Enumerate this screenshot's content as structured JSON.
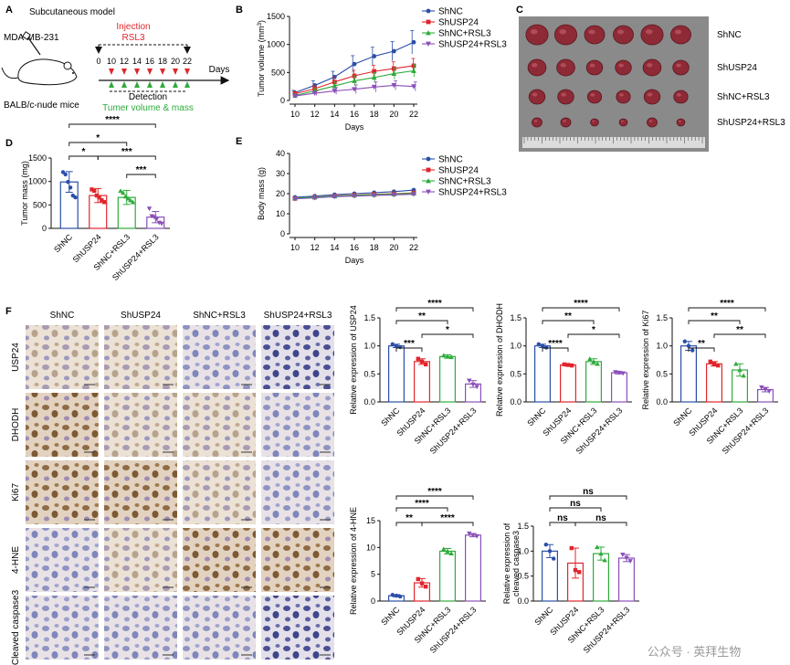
{
  "panel_a": {
    "letter": "A",
    "title": "Subcutaneous model",
    "cell_line": "MDA-MB-231",
    "mouse": "BALB/c-nude mice",
    "injection": "Injection",
    "drug": "RSL3",
    "days_label": "Days",
    "detection": "Detection",
    "detection_detail": "Tumer volume & mass",
    "ticks": [
      "0",
      "10",
      "12",
      "14",
      "16",
      "18",
      "20",
      "22"
    ]
  },
  "panel_b": {
    "letter": "B"
  },
  "panel_c": {
    "letter": "C",
    "rows": [
      "ShNC",
      "ShUSP24",
      "ShNC+RSL3",
      "ShUSP24+RSL3"
    ],
    "tumor_counts": [
      6,
      6,
      6,
      6
    ]
  },
  "panel_d": {
    "letter": "D"
  },
  "panel_e": {
    "letter": "E"
  },
  "panel_f": {
    "letter": "F",
    "columns": [
      "ShNC",
      "ShUSP24",
      "ShNC+RSL3",
      "ShUSP24+RSL3"
    ],
    "rows": [
      "USP24",
      "DHODH",
      "Ki67",
      "4-HNE",
      "Cleaved caspase3"
    ]
  },
  "colors": {
    "ShNC": "#2a4fa8",
    "ShUSP24": "#e0262b",
    "ShNC+RSL3": "#2eab3a",
    "ShUSP24+RSL3": "#8a4fb8"
  },
  "watermark": "公众号 · 英拜生物",
  "chart_data": [
    {
      "id": "tumor-volume",
      "type": "line",
      "x": [
        10,
        12,
        14,
        16,
        18,
        20,
        22
      ],
      "xlabel": "Days",
      "ylabel": "Tumor volume (mm",
      "ylabel_sup": "3",
      "ylabel_end": ")",
      "ylim": [
        0,
        1500
      ],
      "yticks": [
        0,
        500,
        1000,
        1500
      ],
      "legend": "top-right",
      "series": [
        {
          "name": "ShNC",
          "values": [
            140,
            270,
            420,
            650,
            790,
            880,
            1040
          ],
          "err": [
            40,
            80,
            100,
            150,
            160,
            170,
            210
          ]
        },
        {
          "name": "ShUSP24",
          "values": [
            120,
            210,
            330,
            440,
            520,
            570,
            620
          ],
          "err": [
            40,
            60,
            90,
            100,
            110,
            120,
            130
          ]
        },
        {
          "name": "ShNC+RSL3",
          "values": [
            90,
            170,
            260,
            350,
            410,
            480,
            530
          ],
          "err": [
            30,
            50,
            70,
            90,
            90,
            100,
            110
          ]
        },
        {
          "name": "ShUSP24+RSL3",
          "values": [
            80,
            130,
            170,
            200,
            240,
            270,
            250
          ],
          "err": [
            30,
            40,
            60,
            80,
            90,
            80,
            80
          ]
        }
      ]
    },
    {
      "id": "tumor-mass",
      "type": "bar",
      "categories": [
        "ShNC",
        "ShUSP24",
        "ShNC+RSL3",
        "ShUSP24+RSL3"
      ],
      "values": [
        990,
        700,
        660,
        240
      ],
      "err": [
        220,
        150,
        150,
        120
      ],
      "ylabel": "Tumor mass (mg)",
      "ylim": [
        0,
        1500
      ],
      "yticks": [
        0,
        500,
        1000,
        1500
      ],
      "points": [
        [
          1200,
          1150,
          990,
          870,
          700,
          660
        ],
        [
          830,
          800,
          700,
          660,
          600,
          560
        ],
        [
          800,
          760,
          680,
          640,
          600,
          560
        ],
        [
          420,
          260,
          240,
          200,
          120,
          100
        ]
      ],
      "sig": [
        {
          "a": 0,
          "b": 3,
          "label": "****"
        },
        {
          "a": 0,
          "b": 2,
          "label": "*"
        },
        {
          "a": 0,
          "b": 1,
          "label": "*"
        },
        {
          "a": 1,
          "b": 3,
          "label": "***"
        },
        {
          "a": 2,
          "b": 3,
          "label": "***"
        }
      ]
    },
    {
      "id": "body-mass",
      "type": "line",
      "x": [
        10,
        12,
        14,
        16,
        18,
        20,
        22
      ],
      "xlabel": "Days",
      "ylabel": "Body mass (g)",
      "ylim": [
        0,
        40
      ],
      "yticks": [
        0,
        10,
        20,
        30,
        40
      ],
      "legend": "top-right",
      "series": [
        {
          "name": "ShNC",
          "values": [
            18.2,
            18.8,
            19.5,
            20.0,
            20.5,
            21.0,
            21.8
          ]
        },
        {
          "name": "ShUSP24",
          "values": [
            17.6,
            18.2,
            18.9,
            19.3,
            19.7,
            20.0,
            20.4
          ]
        },
        {
          "name": "ShNC+RSL3",
          "values": [
            17.8,
            18.3,
            18.8,
            19.2,
            19.5,
            19.8,
            20.2
          ]
        },
        {
          "name": "ShUSP24+RSL3",
          "values": [
            17.4,
            17.9,
            18.5,
            18.8,
            19.1,
            19.4,
            19.7
          ]
        }
      ]
    },
    {
      "id": "usp24-expression",
      "type": "bar",
      "categories": [
        "ShNC",
        "ShUSP24",
        "ShNC+RSL3",
        "ShUSP24+RSL3"
      ],
      "values": [
        1.0,
        0.72,
        0.81,
        0.32
      ],
      "err": [
        0.03,
        0.05,
        0.03,
        0.06
      ],
      "ylabel": "Relative expression of USP24",
      "ylim": [
        0,
        1.5
      ],
      "yticks": [
        0.0,
        0.5,
        1.0,
        1.5
      ],
      "points": [
        [
          1.03,
          1.0,
          0.98
        ],
        [
          0.77,
          0.72,
          0.67
        ],
        [
          0.83,
          0.81,
          0.8
        ],
        [
          0.38,
          0.31,
          0.27
        ]
      ],
      "sig": [
        {
          "a": 0,
          "b": 3,
          "label": "****"
        },
        {
          "a": 0,
          "b": 2,
          "label": "**"
        },
        {
          "a": 1,
          "b": 3,
          "label": "*"
        },
        {
          "a": 0,
          "b": 1,
          "label": "***"
        }
      ]
    },
    {
      "id": "dhodh-expression",
      "type": "bar",
      "categories": [
        "ShNC",
        "ShUSP24",
        "ShNC+RSL3",
        "ShUSP24+RSL3"
      ],
      "values": [
        1.0,
        0.66,
        0.72,
        0.52
      ],
      "err": [
        0.03,
        0.02,
        0.05,
        0.02
      ],
      "ylabel": "Relative expression of DHODH",
      "ylim": [
        0,
        1.5
      ],
      "yticks": [
        0.0,
        0.5,
        1.0,
        1.5
      ],
      "points": [
        [
          1.03,
          1.0,
          0.97
        ],
        [
          0.67,
          0.66,
          0.65
        ],
        [
          0.77,
          0.72,
          0.68
        ],
        [
          0.53,
          0.52,
          0.51
        ]
      ],
      "sig": [
        {
          "a": 0,
          "b": 3,
          "label": "****"
        },
        {
          "a": 0,
          "b": 2,
          "label": "**"
        },
        {
          "a": 1,
          "b": 3,
          "label": "*"
        },
        {
          "a": 0,
          "b": 1,
          "label": "****"
        }
      ]
    },
    {
      "id": "ki67-expression",
      "type": "bar",
      "categories": [
        "ShNC",
        "ShUSP24",
        "ShNC+RSL3",
        "ShUSP24+RSL3"
      ],
      "values": [
        1.0,
        0.68,
        0.57,
        0.22
      ],
      "err": [
        0.08,
        0.04,
        0.11,
        0.04
      ],
      "ylabel": "Relative expression of Ki67",
      "ylim": [
        0,
        1.5
      ],
      "yticks": [
        0.0,
        0.5,
        1.0,
        1.5
      ],
      "points": [
        [
          1.08,
          1.0,
          0.92
        ],
        [
          0.72,
          0.68,
          0.65
        ],
        [
          0.68,
          0.57,
          0.47
        ],
        [
          0.26,
          0.22,
          0.19
        ]
      ],
      "sig": [
        {
          "a": 0,
          "b": 3,
          "label": "****"
        },
        {
          "a": 0,
          "b": 2,
          "label": "**"
        },
        {
          "a": 1,
          "b": 3,
          "label": "**"
        },
        {
          "a": 0,
          "b": 1,
          "label": "**"
        }
      ]
    },
    {
      "id": "4hne-expression",
      "type": "bar",
      "categories": [
        "ShNC",
        "ShUSP24",
        "ShNC+RSL3",
        "ShUSP24+RSL3"
      ],
      "values": [
        1.0,
        3.4,
        9.3,
        12.3
      ],
      "err": [
        0.2,
        0.8,
        0.5,
        0.3
      ],
      "ylabel": "Relative expression of 4-HNE",
      "ylim": [
        0,
        15
      ],
      "yticks": [
        0,
        5,
        10,
        15
      ],
      "points": [
        [
          1.15,
          1.0,
          0.85
        ],
        [
          4.1,
          3.3,
          2.7
        ],
        [
          9.7,
          9.3,
          8.9
        ],
        [
          12.6,
          12.3,
          12.1
        ]
      ],
      "sig": [
        {
          "a": 0,
          "b": 3,
          "label": "****"
        },
        {
          "a": 0,
          "b": 2,
          "label": "****"
        },
        {
          "a": 0,
          "b": 1,
          "label": "**"
        },
        {
          "a": 1,
          "b": 3,
          "label": "****"
        }
      ]
    },
    {
      "id": "caspase3-expression",
      "type": "bar",
      "categories": [
        "ShNC",
        "ShUSP24",
        "ShNC+RSL3",
        "ShUSP24+RSL3"
      ],
      "values": [
        1.0,
        0.76,
        0.95,
        0.86
      ],
      "err": [
        0.13,
        0.3,
        0.13,
        0.07
      ],
      "ylabel": "Relative expression of",
      "ylabel2": "cleaved caspase3",
      "ylim": [
        0,
        1.5
      ],
      "yticks": [
        0.0,
        0.5,
        1.0,
        1.5
      ],
      "points": [
        [
          1.13,
          1.0,
          0.85
        ],
        [
          1.06,
          0.62,
          0.58
        ],
        [
          1.08,
          0.95,
          0.82
        ],
        [
          0.93,
          0.86,
          0.8
        ]
      ],
      "sig": [
        {
          "a": 0,
          "b": 3,
          "label": "ns"
        },
        {
          "a": 0,
          "b": 2,
          "label": "ns"
        },
        {
          "a": 0,
          "b": 1,
          "label": "ns"
        },
        {
          "a": 1,
          "b": 3,
          "label": "ns"
        }
      ]
    }
  ]
}
